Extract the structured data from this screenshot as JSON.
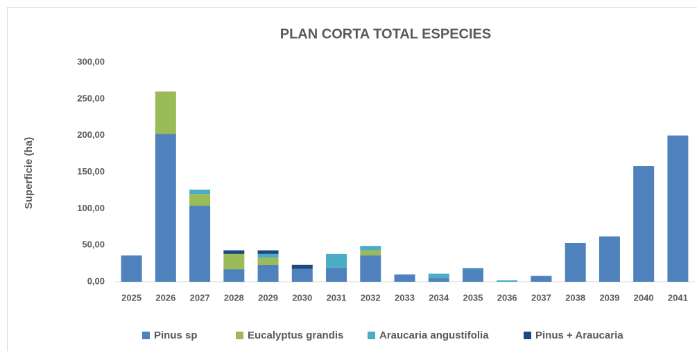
{
  "chart_data": {
    "type": "stacked_bar",
    "title": "PLAN CORTA TOTAL ESPECIES",
    "y_label": "Superficie (ha)",
    "categories": [
      "2025",
      "2026",
      "2027",
      "2028",
      "2029",
      "2030",
      "2031",
      "2032",
      "2033",
      "2034",
      "2035",
      "2036",
      "2037",
      "2038",
      "2039",
      "2040",
      "2041"
    ],
    "series": [
      {
        "name": "Pinus sp",
        "color": "#4f81bd",
        "values": [
          36,
          202,
          104,
          17,
          23,
          18,
          19,
          36,
          10,
          5,
          17,
          0,
          8,
          53,
          62,
          158,
          200
        ]
      },
      {
        "name": "Eucalyptus grandis",
        "color": "#9bbb59",
        "values": [
          0,
          58,
          16,
          21,
          10,
          0,
          0,
          7,
          0,
          0,
          0,
          0,
          0,
          0,
          0,
          0,
          0
        ]
      },
      {
        "name": "Araucaria angustifolia",
        "color": "#4bacc6",
        "values": [
          0,
          0,
          6,
          0,
          5,
          0,
          19,
          6,
          0,
          6,
          2,
          2,
          0,
          0,
          0,
          0,
          0
        ]
      },
      {
        "name": "Pinus + Araucaria",
        "color": "#1f497d",
        "values": [
          0,
          0,
          0,
          5,
          5,
          5,
          0,
          0,
          0,
          0,
          0,
          0,
          0,
          0,
          0,
          0,
          0
        ]
      }
    ],
    "ylim": [
      0,
      300
    ],
    "yticks": [
      {
        "value": 0,
        "label": "0,00"
      },
      {
        "value": 50,
        "label": "50,00"
      },
      {
        "value": 100,
        "label": "100,00"
      },
      {
        "value": 150,
        "label": "150,00"
      },
      {
        "value": 200,
        "label": "200,00"
      },
      {
        "value": 250,
        "label": "250,00"
      },
      {
        "value": 300,
        "label": "300,00"
      }
    ],
    "grid": false,
    "legend": "bottom"
  }
}
